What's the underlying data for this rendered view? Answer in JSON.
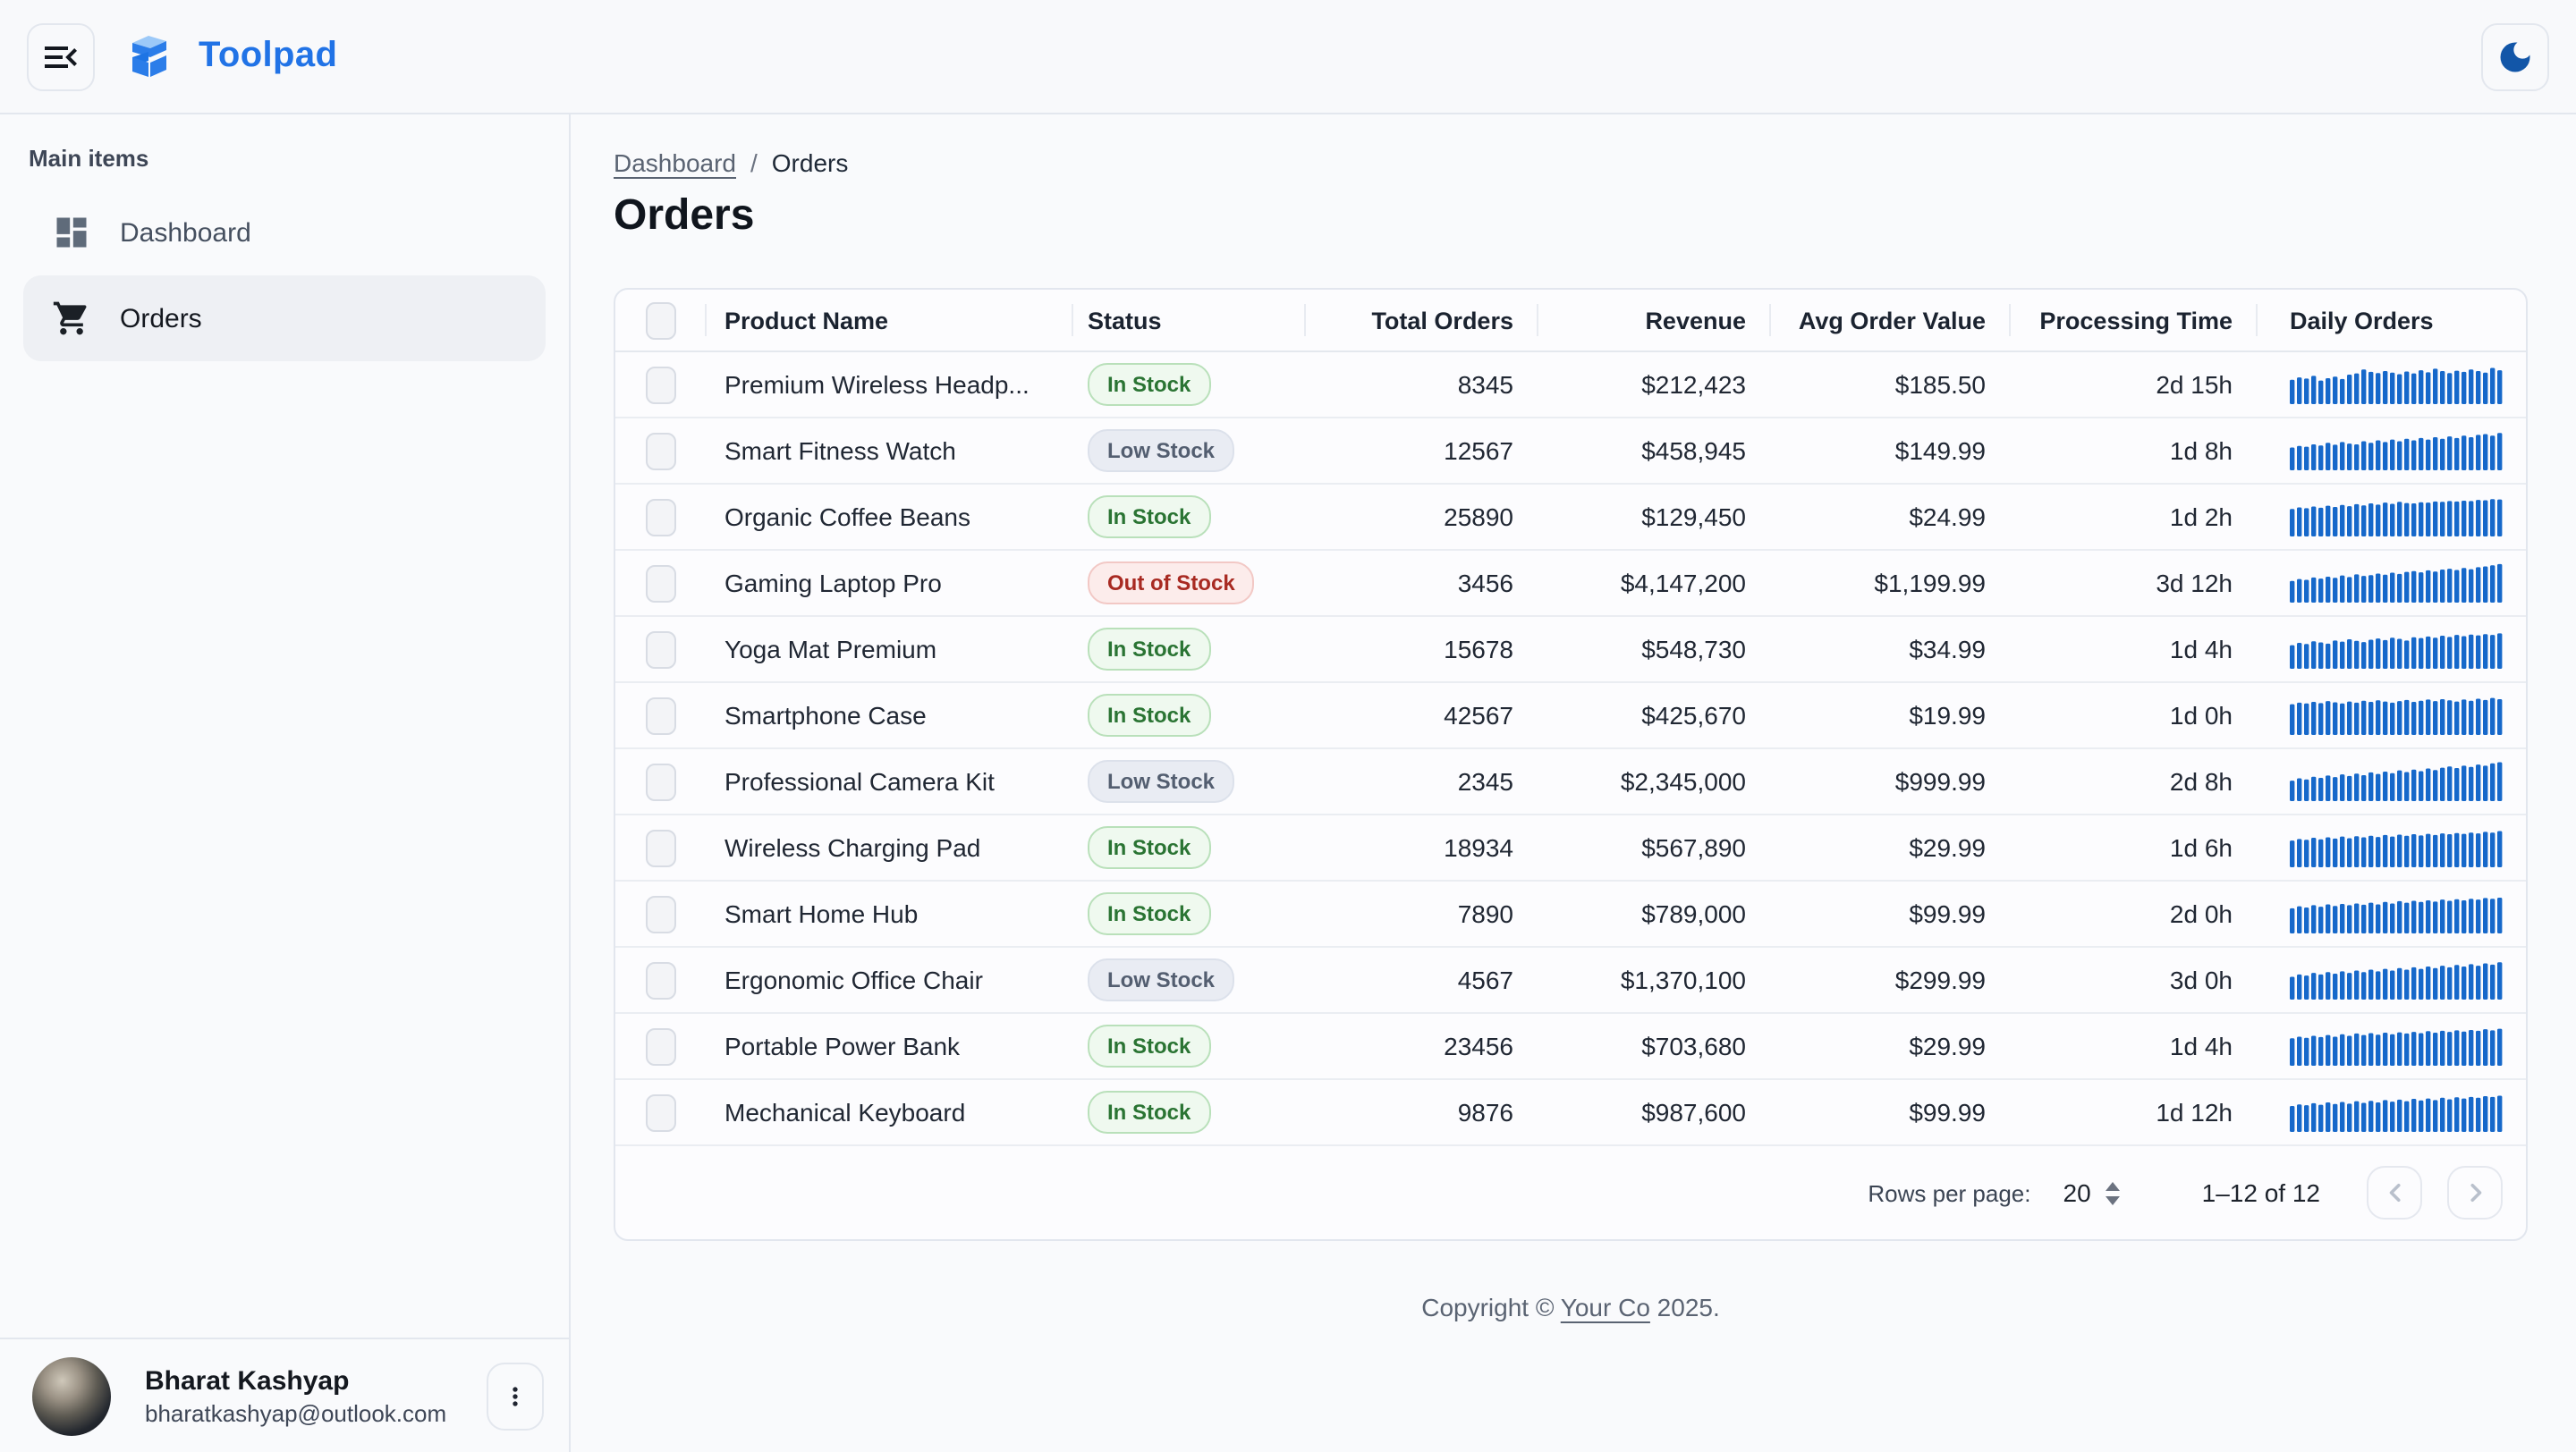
{
  "header": {
    "app_name": "Toolpad"
  },
  "sidebar": {
    "section_label": "Main items",
    "items": [
      {
        "label": "Dashboard",
        "icon": "dashboard-icon",
        "selected": false
      },
      {
        "label": "Orders",
        "icon": "cart-icon",
        "selected": true
      }
    ],
    "user": {
      "name": "Bharat Kashyap",
      "email": "bharatkashyap@outlook.com"
    }
  },
  "breadcrumb": {
    "parent": "Dashboard",
    "separator": "/",
    "current": "Orders"
  },
  "page": {
    "title": "Orders"
  },
  "table": {
    "columns": [
      "Product Name",
      "Status",
      "Total Orders",
      "Revenue",
      "Avg Order Value",
      "Processing Time",
      "Daily Orders"
    ],
    "rows": [
      {
        "product": "Premium Wireless Headp...",
        "status": "In Stock",
        "status_variant": "success",
        "total_orders": "8345",
        "revenue": "$212,423",
        "avg_order_value": "$185.50",
        "processing_time": "2d 15h",
        "spark": [
          62,
          68,
          65,
          72,
          60,
          66,
          70,
          64,
          75,
          78,
          88,
          82,
          79,
          84,
          80,
          76,
          83,
          78,
          86,
          81,
          90,
          84,
          79,
          85,
          82,
          88,
          84,
          80,
          92,
          86
        ]
      },
      {
        "product": "Smart Fitness Watch",
        "status": "Low Stock",
        "status_variant": "neutral",
        "total_orders": "12567",
        "revenue": "$458,945",
        "avg_order_value": "$149.99",
        "processing_time": "1d 8h",
        "spark": [
          58,
          62,
          60,
          66,
          63,
          70,
          65,
          72,
          68,
          66,
          74,
          70,
          76,
          72,
          78,
          74,
          80,
          76,
          82,
          78,
          84,
          80,
          86,
          82,
          88,
          84,
          90,
          92,
          88,
          95
        ]
      },
      {
        "product": "Organic Coffee Beans",
        "status": "In Stock",
        "status_variant": "success",
        "total_orders": "25890",
        "revenue": "$129,450",
        "avg_order_value": "$24.99",
        "processing_time": "1d 2h",
        "spark": [
          70,
          74,
          72,
          76,
          73,
          78,
          75,
          80,
          77,
          82,
          79,
          84,
          81,
          86,
          83,
          88,
          85,
          84,
          87,
          86,
          89,
          88,
          90,
          89,
          91,
          90,
          93,
          92,
          95,
          94
        ]
      },
      {
        "product": "Gaming Laptop Pro",
        "status": "Out of Stock",
        "status_variant": "error",
        "total_orders": "3456",
        "revenue": "$4,147,200",
        "avg_order_value": "$1,199.99",
        "processing_time": "3d 12h",
        "spark": [
          55,
          60,
          58,
          64,
          61,
          66,
          63,
          69,
          65,
          72,
          68,
          70,
          74,
          71,
          76,
          73,
          78,
          80,
          77,
          82,
          79,
          84,
          86,
          83,
          88,
          85,
          90,
          92,
          95,
          98
        ]
      },
      {
        "product": "Yoga Mat Premium",
        "status": "In Stock",
        "status_variant": "success",
        "total_orders": "15678",
        "revenue": "$548,730",
        "avg_order_value": "$34.99",
        "processing_time": "1d 4h",
        "spark": [
          60,
          66,
          63,
          70,
          67,
          64,
          72,
          69,
          75,
          71,
          68,
          74,
          77,
          73,
          79,
          76,
          72,
          80,
          78,
          82,
          79,
          84,
          81,
          86,
          83,
          87,
          85,
          88,
          86,
          90
        ]
      },
      {
        "product": "Smartphone Case",
        "status": "In Stock",
        "status_variant": "success",
        "total_orders": "42567",
        "revenue": "$425,670",
        "avg_order_value": "$19.99",
        "processing_time": "1d 0h",
        "spark": [
          78,
          82,
          80,
          84,
          81,
          86,
          83,
          80,
          85,
          82,
          87,
          84,
          88,
          85,
          82,
          86,
          89,
          84,
          87,
          90,
          86,
          91,
          88,
          85,
          90,
          87,
          92,
          89,
          94,
          91
        ]
      },
      {
        "product": "Professional Camera Kit",
        "status": "Low Stock",
        "status_variant": "neutral",
        "total_orders": "2345",
        "revenue": "$2,345,000",
        "avg_order_value": "$999.99",
        "processing_time": "2d 8h",
        "spark": [
          52,
          58,
          55,
          62,
          59,
          65,
          61,
          68,
          64,
          70,
          66,
          73,
          69,
          75,
          71,
          78,
          74,
          80,
          76,
          83,
          79,
          85,
          88,
          84,
          90,
          87,
          93,
          90,
          96,
          99
        ]
      },
      {
        "product": "Wireless Charging Pad",
        "status": "In Stock",
        "status_variant": "success",
        "total_orders": "18934",
        "revenue": "$567,890",
        "avg_order_value": "$29.99",
        "processing_time": "1d 6h",
        "spark": [
          68,
          72,
          70,
          75,
          71,
          76,
          73,
          78,
          74,
          79,
          76,
          80,
          77,
          82,
          78,
          83,
          80,
          84,
          81,
          85,
          82,
          86,
          84,
          87,
          85,
          88,
          86,
          90,
          88,
          92
        ]
      },
      {
        "product": "Smart Home Hub",
        "status": "In Stock",
        "status_variant": "success",
        "total_orders": "7890",
        "revenue": "$789,000",
        "avg_order_value": "$99.99",
        "processing_time": "2d 0h",
        "spark": [
          64,
          69,
          66,
          72,
          68,
          74,
          70,
          75,
          72,
          76,
          73,
          78,
          74,
          80,
          76,
          82,
          78,
          83,
          80,
          84,
          81,
          86,
          83,
          87,
          84,
          88,
          86,
          90,
          88,
          91
        ]
      },
      {
        "product": "Ergonomic Office Chair",
        "status": "Low Stock",
        "status_variant": "neutral",
        "total_orders": "4567",
        "revenue": "$1,370,100",
        "avg_order_value": "$299.99",
        "processing_time": "3d 0h",
        "spark": [
          58,
          64,
          61,
          68,
          64,
          70,
          66,
          72,
          68,
          74,
          70,
          76,
          72,
          78,
          74,
          80,
          76,
          82,
          78,
          84,
          80,
          86,
          82,
          88,
          84,
          90,
          86,
          92,
          89,
          95
        ]
      },
      {
        "product": "Portable Power Bank",
        "status": "In Stock",
        "status_variant": "success",
        "total_orders": "23456",
        "revenue": "$703,680",
        "avg_order_value": "$29.99",
        "processing_time": "1d 4h",
        "spark": [
          70,
          74,
          71,
          76,
          73,
          78,
          74,
          80,
          76,
          82,
          78,
          83,
          79,
          84,
          80,
          85,
          82,
          86,
          83,
          88,
          84,
          89,
          86,
          90,
          87,
          91,
          89,
          93,
          90,
          94
        ]
      },
      {
        "product": "Mechanical Keyboard",
        "status": "In Stock",
        "status_variant": "success",
        "total_orders": "9876",
        "revenue": "$987,600",
        "avg_order_value": "$99.99",
        "processing_time": "1d 12h",
        "spark": [
          66,
          70,
          68,
          73,
          69,
          75,
          71,
          76,
          72,
          78,
          74,
          79,
          75,
          81,
          77,
          82,
          78,
          84,
          80,
          85,
          81,
          87,
          83,
          88,
          85,
          89,
          87,
          91,
          89,
          92
        ]
      }
    ]
  },
  "pagination": {
    "rows_per_page_label": "Rows per page:",
    "rows_per_page": "20",
    "range": "1–12 of 12"
  },
  "footer": {
    "prefix": "Copyright © ",
    "link": "Your Co",
    "suffix": " 2025."
  },
  "colors": {
    "accent": "#2173E6",
    "spark": "#1668CA",
    "moon": "#1256A8",
    "success": "#2A7433",
    "error": "#A82A22"
  }
}
